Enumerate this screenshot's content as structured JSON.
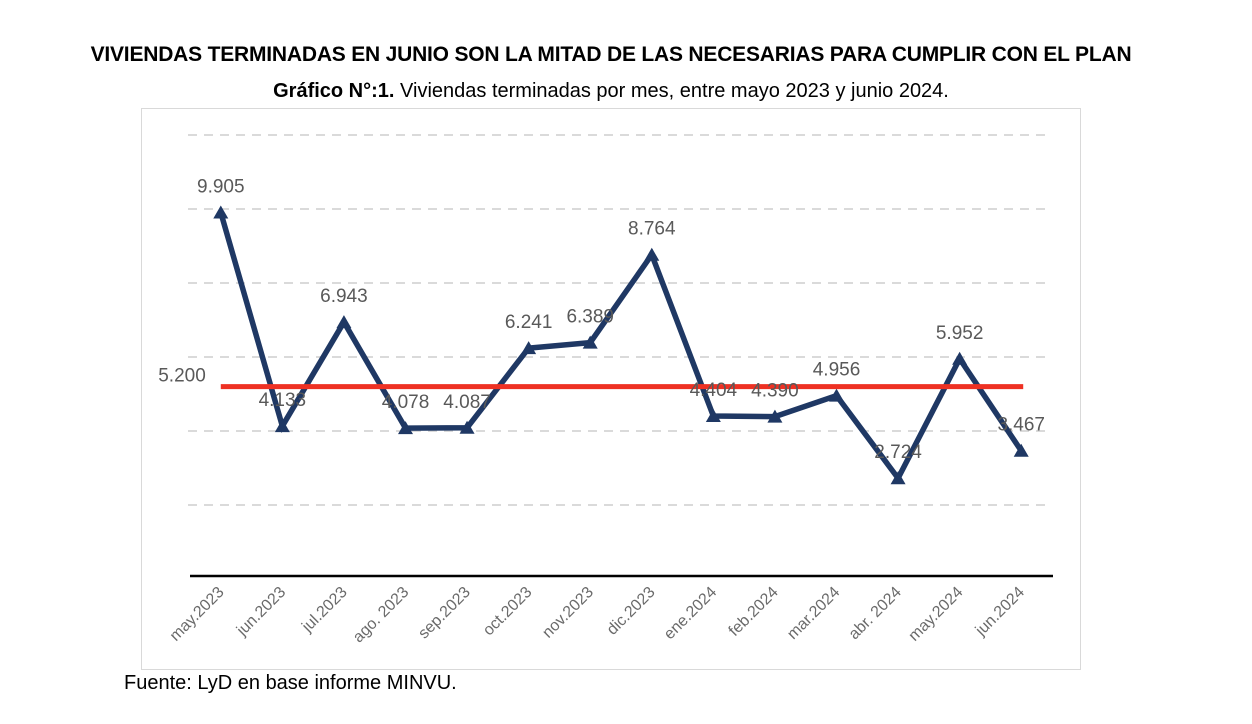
{
  "header": {
    "title": "VIVIENDAS TERMINADAS EN JUNIO SON LA MITAD DE LAS NECESARIAS PARA CUMPLIR CON EL PLAN",
    "subtitle_bold": "Gráfico N°:1.",
    "subtitle_rest": " Viviendas terminadas por mes, entre mayo 2023 y junio 2024."
  },
  "chart_data": {
    "type": "line",
    "title": "VIVIENDAS TERMINADAS EN JUNIO SON LA MITAD DE LAS NECESARIAS PARA CUMPLIR CON EL PLAN",
    "subtitle": "Gráfico N°:1. Viviendas terminadas por mes, entre mayo 2023 y junio 2024.",
    "categories": [
      "may.2023",
      "jun.2023",
      "jul.2023",
      "ago. 2023",
      "sep.2023",
      "oct.2023",
      "nov.2023",
      "dic.2023",
      "ene.2024",
      "feb.2024",
      "mar.2024",
      "abr. 2024",
      "may.2024",
      "jun.2024"
    ],
    "series": [
      {
        "name": "viviendas-terminadas-por-mes",
        "values": [
          9905,
          4133,
          6943,
          4078,
          4087,
          6241,
          6389,
          8764,
          4404,
          4390,
          4956,
          2724,
          5952,
          3467
        ],
        "point_labels": [
          "9.905",
          "4.133",
          "6.943",
          "4.078",
          "4.087",
          "6.241",
          "6.389",
          "8.764",
          "4.404",
          "4.390",
          "4.956",
          "2.724",
          "5.952",
          "3.467"
        ],
        "color": "#1f3864",
        "marker": "triangle-up"
      }
    ],
    "reference_line": {
      "value": 5200,
      "label": "5.200",
      "color": "#ee3123"
    },
    "ylim": [
      0,
      12000
    ],
    "grid_step": 2000,
    "gridlines": "horizontal-dashed",
    "grid_color": "#d5d5d5",
    "label_color": "#595959",
    "axis_label_color": "#6a6a6a",
    "legend_position": "none",
    "xlabel": "",
    "ylabel": ""
  },
  "footer": {
    "source": "Fuente: LyD en base informe MINVU."
  }
}
